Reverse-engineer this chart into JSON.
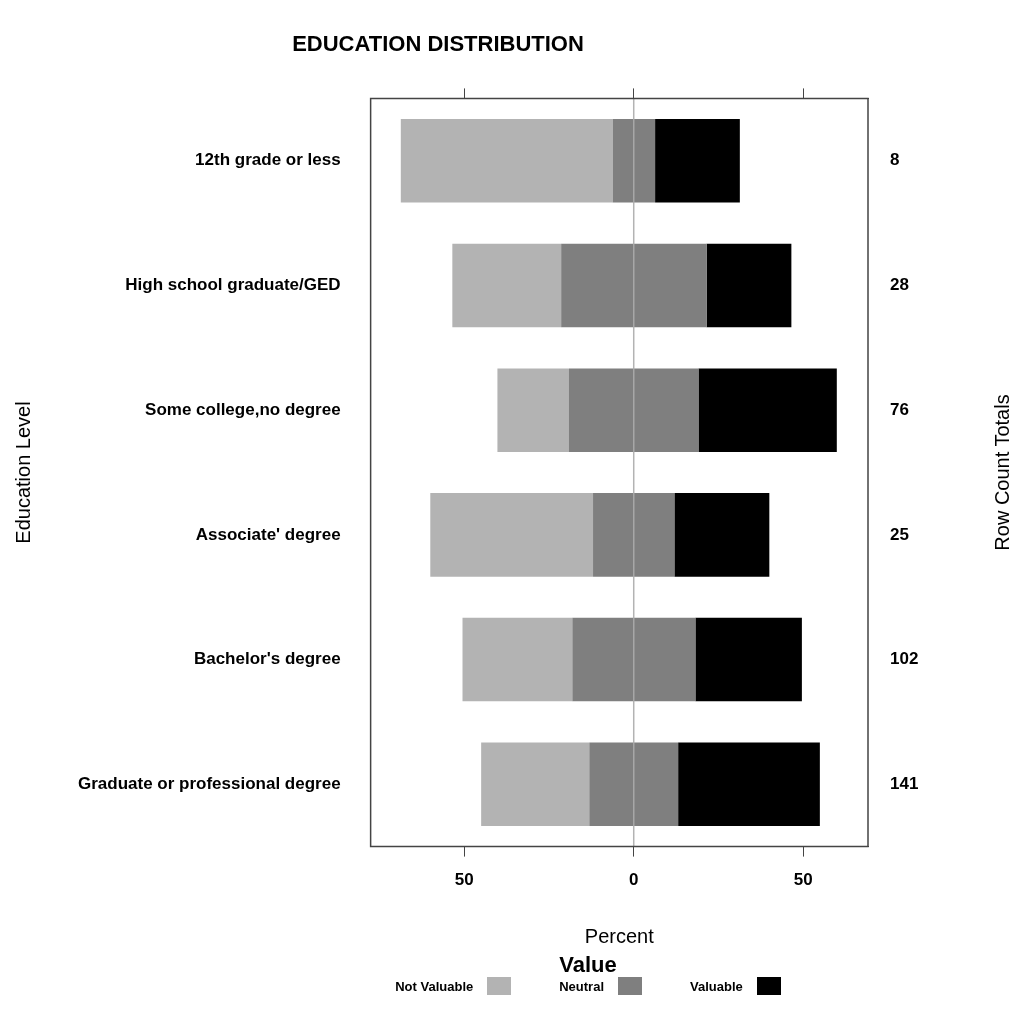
{
  "chart_data": {
    "type": "bar",
    "orientation": "horizontal",
    "stacked": true,
    "title": "EDUCATION DISTRIBUTION",
    "xlabel": "Percent",
    "ylabel": "Education Level",
    "legend_title": "Value",
    "categories": [
      "12th grade or less",
      "High school graduate/GED",
      "Some college,no degree",
      "Associate' degree",
      "Bachelor's degree",
      "Graduate or professional degree"
    ],
    "series": [
      {
        "color": "#7f7f7f",
        "values": [
          -6.2,
          -21.4,
          -19.1,
          -12,
          -18.1,
          -13.1
        ]
      },
      {
        "name": "Not Valuable",
        "color": "#b3b3b3",
        "values": [
          -62.5,
          -32.1,
          -21.1,
          -48,
          -32.4,
          -31.9
        ]
      },
      {
        "name": "Neutral",
        "color": "#7f7f7f",
        "values": [
          6.3,
          21.5,
          19.1,
          12,
          18.2,
          13.1
        ]
      },
      {
        "name": "Valuable",
        "color": "#000000",
        "values": [
          25,
          25,
          40.8,
          28,
          31.4,
          41.8
        ]
      }
    ],
    "annotations": [
      "Row Count Totals",
      "8",
      "28",
      "76",
      "25",
      "102",
      "141"
    ],
    "xlim": [
      -77.6,
      69.1
    ],
    "xticks": [
      {
        "value": -50,
        "label": "50"
      },
      0,
      50
    ],
    "ref_lines": [
      {
        "axis": "x",
        "value": 0,
        "color": "#b3b3b3"
      }
    ],
    "grid": false,
    "legend": "bottom"
  }
}
